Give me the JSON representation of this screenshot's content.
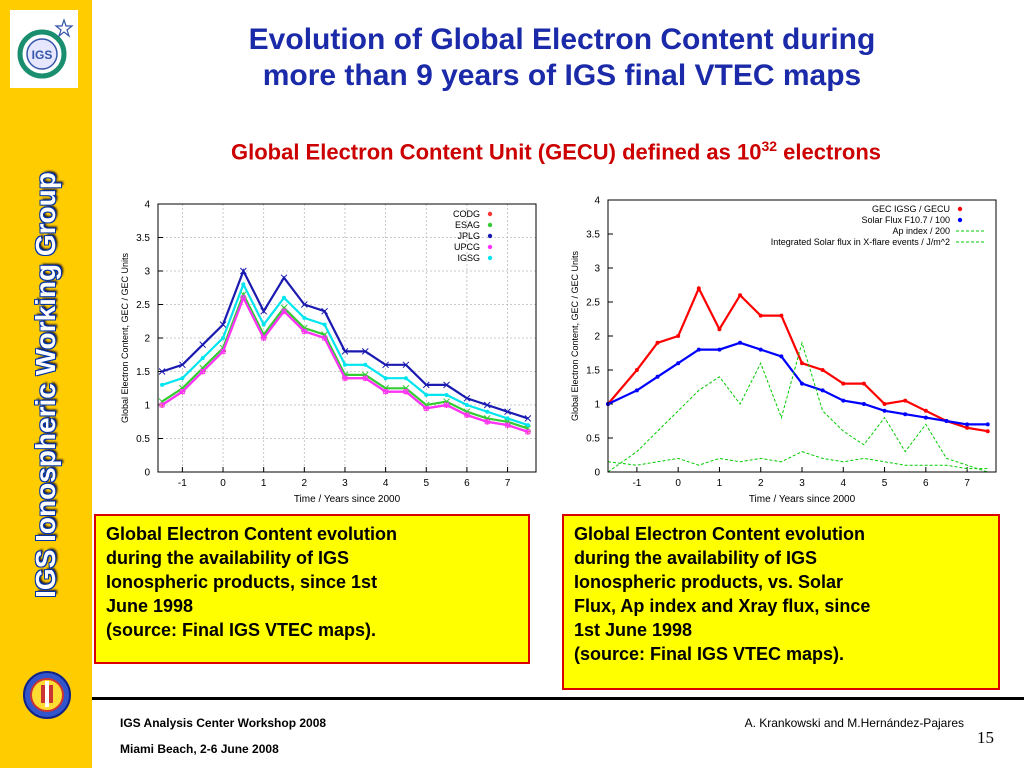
{
  "sidebar": {
    "logo_text": "IGS",
    "vertical_title": "IGS Ionospheric Working Group"
  },
  "slide": {
    "title_line1": "Evolution of Global Electron Content during",
    "title_line2": "more than 9 years of IGS final VTEC maps",
    "subtitle_pre": "Global Electron Content Unit (GECU) defined as 10",
    "subtitle_sup": "32",
    "subtitle_post": " electrons",
    "page_number": "15"
  },
  "captions": {
    "left": [
      "Global Electron Content evolution",
      "during the availability of IGS",
      "Ionospheric products, since 1st",
      "June 1998",
      "(source: Final IGS VTEC maps)."
    ],
    "right": [
      "Global Electron Content evolution",
      "during the availability of IGS",
      "Ionospheric products, vs. Solar",
      "Flux, Ap index and Xray flux, since",
      "1st June 1998",
      "(source: Final IGS VTEC maps)."
    ]
  },
  "footer": {
    "left_line1": "IGS Analysis Center Workshop 2008",
    "left_line2": "Miami Beach, 2-6 June 2008",
    "right_line1": "A. Krankowski and M.Hernández-Pajares"
  },
  "colors": {
    "sidebar": "#ffcc00",
    "title": "#1a2aa8",
    "subtitle": "#cc0000",
    "caption_bg": "#ffff00",
    "caption_border": "#dd0000"
  },
  "chart_data": [
    {
      "type": "scatter",
      "xlabel": "Time / Years since 2000",
      "ylabel": "Global Electron Content, GEC / GEC Units",
      "xlim": [
        -1.6,
        7.7
      ],
      "ylim": [
        0,
        4
      ],
      "xticks": [
        -1,
        0,
        1,
        2,
        3,
        4,
        5,
        6,
        7
      ],
      "yticks": [
        0,
        0.5,
        1,
        1.5,
        2,
        2.5,
        3,
        3.5,
        4
      ],
      "grid": true,
      "legend_position": "top-right",
      "series": [
        {
          "name": "CODG",
          "color": "#ff3333",
          "marker": "+",
          "x": [
            -1.5,
            -1.0,
            -0.5,
            0.0,
            0.5,
            1.0,
            1.5,
            2.0,
            2.5,
            3.0,
            3.5,
            4.0,
            4.5,
            5.0,
            5.5,
            6.0,
            6.5,
            7.0,
            7.5
          ],
          "y": [
            1.0,
            1.2,
            1.5,
            1.8,
            2.6,
            2.0,
            2.4,
            2.1,
            2.0,
            1.4,
            1.4,
            1.2,
            1.2,
            0.95,
            1.0,
            0.85,
            0.75,
            0.7,
            0.6
          ]
        },
        {
          "name": "ESAG",
          "color": "#33cc33",
          "marker": "x",
          "x": [
            -1.5,
            -1.0,
            -0.5,
            0.0,
            0.5,
            1.0,
            1.5,
            2.0,
            2.5,
            3.0,
            3.5,
            4.0,
            4.5,
            5.0,
            5.5,
            6.0,
            6.5,
            7.0,
            7.5
          ],
          "y": [
            1.05,
            1.25,
            1.55,
            1.85,
            2.65,
            2.05,
            2.45,
            2.15,
            2.05,
            1.45,
            1.45,
            1.25,
            1.25,
            1.0,
            1.05,
            0.9,
            0.8,
            0.75,
            0.65
          ]
        },
        {
          "name": "JPLG",
          "color": "#1a1ab0",
          "marker": "x",
          "x": [
            -1.5,
            -1.0,
            -0.5,
            0.0,
            0.5,
            1.0,
            1.5,
            2.0,
            2.5,
            3.0,
            3.5,
            4.0,
            4.5,
            5.0,
            5.5,
            6.0,
            6.5,
            7.0,
            7.5
          ],
          "y": [
            1.5,
            1.6,
            1.9,
            2.2,
            3.0,
            2.4,
            2.9,
            2.5,
            2.4,
            1.8,
            1.8,
            1.6,
            1.6,
            1.3,
            1.3,
            1.1,
            1.0,
            0.9,
            0.8
          ]
        },
        {
          "name": "UPCG",
          "color": "#ff33ff",
          "marker": "square",
          "x": [
            -1.5,
            -1.0,
            -0.5,
            0.0,
            0.5,
            1.0,
            1.5,
            2.0,
            2.5,
            3.0,
            3.5,
            4.0,
            4.5,
            5.0,
            5.5,
            6.0,
            6.5,
            7.0,
            7.5
          ],
          "y": [
            1.0,
            1.2,
            1.5,
            1.8,
            2.6,
            2.0,
            2.4,
            2.1,
            2.0,
            1.4,
            1.4,
            1.2,
            1.2,
            0.95,
            1.0,
            0.85,
            0.75,
            0.7,
            0.6
          ]
        },
        {
          "name": "IGSG",
          "color": "#00e5ee",
          "marker": "dot",
          "x": [
            -1.5,
            -1.0,
            -0.5,
            0.0,
            0.5,
            1.0,
            1.5,
            2.0,
            2.5,
            3.0,
            3.5,
            4.0,
            4.5,
            5.0,
            5.5,
            6.0,
            6.5,
            7.0,
            7.5
          ],
          "y": [
            1.3,
            1.4,
            1.7,
            2.0,
            2.8,
            2.2,
            2.6,
            2.3,
            2.2,
            1.6,
            1.6,
            1.4,
            1.4,
            1.15,
            1.15,
            1.0,
            0.9,
            0.8,
            0.7
          ]
        }
      ]
    },
    {
      "type": "scatter",
      "xlabel": "Time / Years since 2000",
      "ylabel": "Global Electron Content, GEC / GEC Units",
      "xlim": [
        -1.7,
        7.7
      ],
      "ylim": [
        0,
        4
      ],
      "xticks": [
        -1,
        0,
        1,
        2,
        3,
        4,
        5,
        6,
        7
      ],
      "yticks": [
        0,
        0.5,
        1,
        1.5,
        2,
        2.5,
        3,
        3.5,
        4
      ],
      "grid": false,
      "legend_position": "top-right",
      "series": [
        {
          "name": "GEC IGSG / GECU",
          "color": "#ff0000",
          "marker": "dot",
          "x": [
            -1.7,
            -1.0,
            -0.5,
            0.0,
            0.5,
            1.0,
            1.5,
            2.0,
            2.5,
            3.0,
            3.5,
            4.0,
            4.5,
            5.0,
            5.5,
            6.0,
            6.5,
            7.0,
            7.5
          ],
          "y": [
            1.0,
            1.5,
            1.9,
            2.0,
            2.7,
            2.1,
            2.6,
            2.3,
            2.3,
            1.6,
            1.5,
            1.3,
            1.3,
            1.0,
            1.05,
            0.9,
            0.75,
            0.65,
            0.6
          ]
        },
        {
          "name": "Solar Flux F10.7 / 100",
          "color": "#0000ff",
          "marker": "dot",
          "x": [
            -1.7,
            -1.0,
            -0.5,
            0.0,
            0.5,
            1.0,
            1.5,
            2.0,
            2.5,
            3.0,
            3.5,
            4.0,
            4.5,
            5.0,
            5.5,
            6.0,
            6.5,
            7.0,
            7.5
          ],
          "y": [
            1.0,
            1.2,
            1.4,
            1.6,
            1.8,
            1.8,
            1.9,
            1.8,
            1.7,
            1.3,
            1.2,
            1.05,
            1.0,
            0.9,
            0.85,
            0.8,
            0.75,
            0.7,
            0.7
          ]
        },
        {
          "name": "Ap index / 200",
          "color": "#00cc00",
          "marker": "line",
          "x": [
            -1.7,
            -1.0,
            -0.5,
            0.0,
            0.5,
            1.0,
            1.5,
            2.0,
            2.5,
            3.0,
            3.5,
            4.0,
            4.5,
            5.0,
            5.5,
            6.0,
            6.5,
            7.0,
            7.5
          ],
          "y": [
            0.15,
            0.1,
            0.15,
            0.2,
            0.1,
            0.2,
            0.15,
            0.2,
            0.15,
            0.3,
            0.2,
            0.15,
            0.2,
            0.15,
            0.1,
            0.1,
            0.1,
            0.05,
            0.05
          ]
        },
        {
          "name": "Integrated Solar flux in X-flare events / J/m^2",
          "color": "#00cc00",
          "marker": "line",
          "x": [
            -1.7,
            -1.0,
            -0.5,
            0.0,
            0.5,
            1.0,
            1.5,
            2.0,
            2.5,
            3.0,
            3.5,
            4.0,
            4.5,
            5.0,
            5.5,
            6.0,
            6.5,
            7.0,
            7.5
          ],
          "y": [
            0.0,
            0.3,
            0.6,
            0.9,
            1.2,
            1.4,
            1.0,
            1.6,
            0.8,
            1.9,
            0.9,
            0.6,
            0.4,
            0.8,
            0.3,
            0.7,
            0.2,
            0.1,
            0.0
          ]
        }
      ]
    }
  ]
}
